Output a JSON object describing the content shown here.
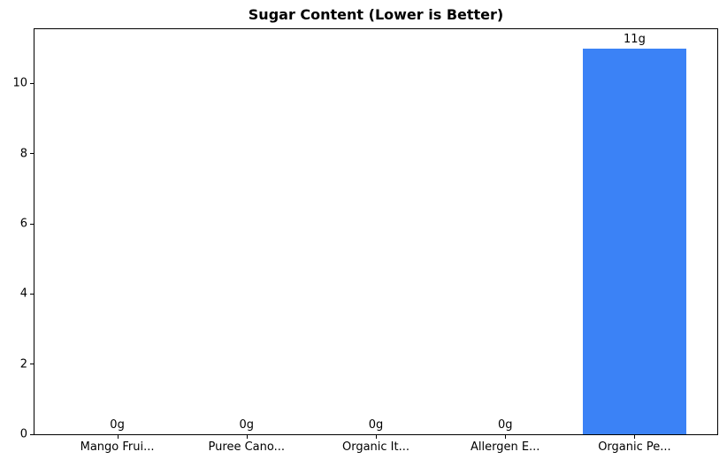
{
  "chart_data": {
    "type": "bar",
    "title": "Sugar Content (Lower is Better)",
    "categories": [
      "Mango Frui...",
      "Puree Cano...",
      "Organic It...",
      "Allergen E...",
      "Organic Pe..."
    ],
    "values": [
      0,
      0,
      0,
      0,
      11
    ],
    "bar_labels": [
      "0g",
      "0g",
      "0g",
      "0g",
      "11g"
    ],
    "unit": "g",
    "bar_color": "#3b82f6",
    "xlabel": "",
    "ylabel": "",
    "ylim": [
      0,
      11.55
    ],
    "yticks": [
      0,
      2,
      4,
      6,
      8,
      10
    ],
    "grid": false,
    "legend": "none"
  }
}
